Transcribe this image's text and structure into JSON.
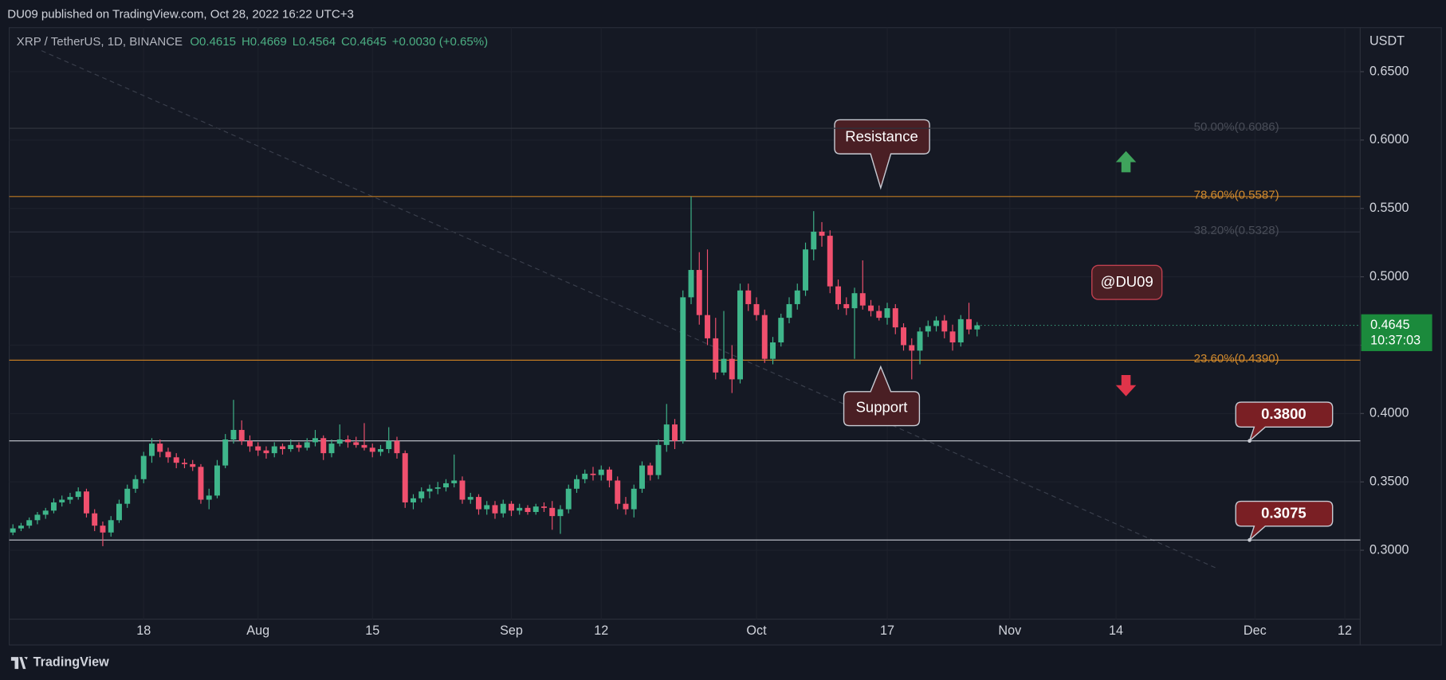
{
  "header": {
    "published": "DU09 published on TradingView.com, Oct 28, 2022 16:22 UTC+3",
    "symbol": "XRP / TetherUS, 1D, BINANCE",
    "ohlc_labels": [
      "O0.4615",
      "H0.4669",
      "L0.4564",
      "C0.4645"
    ],
    "change": "+0.0030 (+0.65%)"
  },
  "footer": {
    "brand": "TradingView"
  },
  "chart_data": {
    "type": "candlestick",
    "y_axis_label": "USDT",
    "countdown": "10:37:03",
    "up_color": "#3fb68b",
    "down_color": "#f0506e",
    "grid": true,
    "ylim": [
      0.2496,
      0.6822
    ],
    "yticks": [
      {
        "value": 0.3,
        "label": "0.3000"
      },
      {
        "value": 0.35,
        "label": "0.3500"
      },
      {
        "value": 0.4,
        "label": "0.4000"
      },
      {
        "value": 0.45,
        "label": "0.4500"
      },
      {
        "value": 0.5,
        "label": "0.5000"
      },
      {
        "value": 0.55,
        "label": "0.5500"
      },
      {
        "value": 0.6,
        "label": "0.6000"
      },
      {
        "value": 0.65,
        "label": "0.6500"
      }
    ],
    "xlim": [
      "07-02",
      "12-14"
    ],
    "xticks": [
      {
        "value": "07-18",
        "label": "18"
      },
      {
        "value": "08-01",
        "label": "Aug"
      },
      {
        "value": "08-15",
        "label": "15"
      },
      {
        "value": "09-01",
        "label": "Sep"
      },
      {
        "value": "09-12",
        "label": "12"
      },
      {
        "value": "10-01",
        "label": "Oct"
      },
      {
        "value": "10-17",
        "label": "17"
      },
      {
        "value": "11-01",
        "label": "Nov"
      },
      {
        "value": "11-14",
        "label": "14"
      },
      {
        "value": "12-01",
        "label": "Dec"
      },
      {
        "value": "12-12",
        "label": "12"
      }
    ],
    "x": [
      "07-02",
      "07-03",
      "07-04",
      "07-05",
      "07-06",
      "07-07",
      "07-08",
      "07-09",
      "07-10",
      "07-11",
      "07-12",
      "07-13",
      "07-14",
      "07-15",
      "07-16",
      "07-17",
      "07-18",
      "07-19",
      "07-20",
      "07-21",
      "07-22",
      "07-23",
      "07-24",
      "07-25",
      "07-26",
      "07-27",
      "07-28",
      "07-29",
      "07-30",
      "07-31",
      "08-01",
      "08-02",
      "08-03",
      "08-04",
      "08-05",
      "08-06",
      "08-07",
      "08-08",
      "08-09",
      "08-10",
      "08-11",
      "08-12",
      "08-13",
      "08-14",
      "08-15",
      "08-16",
      "08-17",
      "08-18",
      "08-19",
      "08-20",
      "08-21",
      "08-22",
      "08-23",
      "08-24",
      "08-25",
      "08-26",
      "08-27",
      "08-28",
      "08-29",
      "08-30",
      "08-31",
      "09-01",
      "09-02",
      "09-03",
      "09-04",
      "09-05",
      "09-06",
      "09-07",
      "09-08",
      "09-09",
      "09-10",
      "09-11",
      "09-12",
      "09-13",
      "09-14",
      "09-15",
      "09-16",
      "09-17",
      "09-18",
      "09-19",
      "09-20",
      "09-21",
      "09-22",
      "09-23",
      "09-24",
      "09-25",
      "09-26",
      "09-27",
      "09-28",
      "09-29",
      "09-30",
      "10-01",
      "10-02",
      "10-03",
      "10-04",
      "10-05",
      "10-06",
      "10-07",
      "10-08",
      "10-09",
      "10-10",
      "10-11",
      "10-12",
      "10-13",
      "10-14",
      "10-15",
      "10-16",
      "10-17",
      "10-18",
      "10-19",
      "10-20",
      "10-21",
      "10-22",
      "10-23",
      "10-24",
      "10-25",
      "10-26",
      "10-27",
      "10-28"
    ],
    "ohlc": [
      [
        0.313,
        0.319,
        0.311,
        0.316
      ],
      [
        0.316,
        0.32,
        0.314,
        0.318
      ],
      [
        0.318,
        0.324,
        0.316,
        0.322
      ],
      [
        0.322,
        0.328,
        0.319,
        0.326
      ],
      [
        0.326,
        0.331,
        0.323,
        0.329
      ],
      [
        0.329,
        0.338,
        0.327,
        0.335
      ],
      [
        0.335,
        0.34,
        0.332,
        0.337
      ],
      [
        0.337,
        0.342,
        0.334,
        0.339
      ],
      [
        0.339,
        0.346,
        0.337,
        0.343
      ],
      [
        0.343,
        0.345,
        0.324,
        0.327
      ],
      [
        0.327,
        0.33,
        0.314,
        0.318
      ],
      [
        0.318,
        0.321,
        0.303,
        0.313
      ],
      [
        0.313,
        0.325,
        0.31,
        0.322
      ],
      [
        0.322,
        0.337,
        0.32,
        0.334
      ],
      [
        0.334,
        0.348,
        0.331,
        0.345
      ],
      [
        0.345,
        0.355,
        0.342,
        0.352
      ],
      [
        0.352,
        0.372,
        0.349,
        0.369
      ],
      [
        0.369,
        0.382,
        0.364,
        0.378
      ],
      [
        0.378,
        0.381,
        0.368,
        0.372
      ],
      [
        0.372,
        0.375,
        0.364,
        0.368
      ],
      [
        0.368,
        0.371,
        0.36,
        0.364
      ],
      [
        0.364,
        0.367,
        0.36,
        0.363
      ],
      [
        0.363,
        0.366,
        0.358,
        0.361
      ],
      [
        0.361,
        0.363,
        0.334,
        0.337
      ],
      [
        0.337,
        0.345,
        0.33,
        0.34
      ],
      [
        0.34,
        0.366,
        0.338,
        0.362
      ],
      [
        0.362,
        0.385,
        0.36,
        0.381
      ],
      [
        0.381,
        0.41,
        0.378,
        0.388
      ],
      [
        0.388,
        0.395,
        0.377,
        0.38
      ],
      [
        0.38,
        0.384,
        0.372,
        0.376
      ],
      [
        0.376,
        0.379,
        0.369,
        0.373
      ],
      [
        0.373,
        0.376,
        0.367,
        0.371
      ],
      [
        0.371,
        0.379,
        0.368,
        0.376
      ],
      [
        0.376,
        0.378,
        0.37,
        0.374
      ],
      [
        0.374,
        0.381,
        0.372,
        0.377
      ],
      [
        0.377,
        0.379,
        0.372,
        0.375
      ],
      [
        0.375,
        0.382,
        0.373,
        0.379
      ],
      [
        0.379,
        0.388,
        0.376,
        0.382
      ],
      [
        0.382,
        0.384,
        0.366,
        0.371
      ],
      [
        0.371,
        0.381,
        0.368,
        0.378
      ],
      [
        0.378,
        0.392,
        0.376,
        0.381
      ],
      [
        0.381,
        0.384,
        0.375,
        0.379
      ],
      [
        0.379,
        0.383,
        0.375,
        0.377
      ],
      [
        0.377,
        0.393,
        0.373,
        0.375
      ],
      [
        0.375,
        0.378,
        0.368,
        0.372
      ],
      [
        0.372,
        0.377,
        0.369,
        0.374
      ],
      [
        0.374,
        0.39,
        0.371,
        0.38
      ],
      [
        0.38,
        0.383,
        0.367,
        0.371
      ],
      [
        0.371,
        0.373,
        0.331,
        0.335
      ],
      [
        0.335,
        0.341,
        0.33,
        0.338
      ],
      [
        0.338,
        0.346,
        0.335,
        0.343
      ],
      [
        0.343,
        0.348,
        0.338,
        0.345
      ],
      [
        0.345,
        0.35,
        0.341,
        0.346
      ],
      [
        0.346,
        0.352,
        0.343,
        0.349
      ],
      [
        0.349,
        0.37,
        0.346,
        0.351
      ],
      [
        0.351,
        0.354,
        0.334,
        0.337
      ],
      [
        0.337,
        0.342,
        0.334,
        0.339
      ],
      [
        0.339,
        0.341,
        0.326,
        0.33
      ],
      [
        0.33,
        0.336,
        0.326,
        0.333
      ],
      [
        0.333,
        0.336,
        0.323,
        0.327
      ],
      [
        0.327,
        0.337,
        0.324,
        0.334
      ],
      [
        0.334,
        0.336,
        0.325,
        0.329
      ],
      [
        0.329,
        0.334,
        0.326,
        0.331
      ],
      [
        0.331,
        0.333,
        0.326,
        0.328
      ],
      [
        0.328,
        0.334,
        0.326,
        0.332
      ],
      [
        0.332,
        0.335,
        0.328,
        0.331
      ],
      [
        0.331,
        0.336,
        0.315,
        0.325
      ],
      [
        0.325,
        0.333,
        0.312,
        0.33
      ],
      [
        0.33,
        0.348,
        0.327,
        0.345
      ],
      [
        0.345,
        0.355,
        0.342,
        0.352
      ],
      [
        0.352,
        0.359,
        0.349,
        0.356
      ],
      [
        0.356,
        0.361,
        0.351,
        0.355
      ],
      [
        0.355,
        0.362,
        0.351,
        0.359
      ],
      [
        0.359,
        0.361,
        0.346,
        0.351
      ],
      [
        0.351,
        0.354,
        0.33,
        0.334
      ],
      [
        0.334,
        0.339,
        0.326,
        0.33
      ],
      [
        0.33,
        0.348,
        0.324,
        0.345
      ],
      [
        0.345,
        0.365,
        0.342,
        0.362
      ],
      [
        0.362,
        0.364,
        0.351,
        0.355
      ],
      [
        0.355,
        0.381,
        0.352,
        0.377
      ],
      [
        0.377,
        0.407,
        0.372,
        0.392
      ],
      [
        0.392,
        0.396,
        0.374,
        0.38
      ],
      [
        0.38,
        0.49,
        0.378,
        0.485
      ],
      [
        0.485,
        0.5587,
        0.48,
        0.505
      ],
      [
        0.505,
        0.518,
        0.465,
        0.472
      ],
      [
        0.472,
        0.52,
        0.45,
        0.455
      ],
      [
        0.455,
        0.47,
        0.425,
        0.43
      ],
      [
        0.43,
        0.475,
        0.428,
        0.44
      ],
      [
        0.44,
        0.45,
        0.415,
        0.425
      ],
      [
        0.425,
        0.495,
        0.422,
        0.49
      ],
      [
        0.49,
        0.495,
        0.475,
        0.48
      ],
      [
        0.48,
        0.485,
        0.468,
        0.472
      ],
      [
        0.472,
        0.476,
        0.437,
        0.44
      ],
      [
        0.44,
        0.456,
        0.436,
        0.452
      ],
      [
        0.452,
        0.473,
        0.449,
        0.47
      ],
      [
        0.47,
        0.485,
        0.466,
        0.48
      ],
      [
        0.48,
        0.495,
        0.476,
        0.49
      ],
      [
        0.49,
        0.525,
        0.486,
        0.52
      ],
      [
        0.52,
        0.548,
        0.512,
        0.533
      ],
      [
        0.533,
        0.54,
        0.522,
        0.53
      ],
      [
        0.53,
        0.534,
        0.488,
        0.493
      ],
      [
        0.493,
        0.498,
        0.476,
        0.48
      ],
      [
        0.48,
        0.485,
        0.472,
        0.477
      ],
      [
        0.477,
        0.492,
        0.44,
        0.488
      ],
      [
        0.488,
        0.512,
        0.476,
        0.479
      ],
      [
        0.479,
        0.483,
        0.471,
        0.475
      ],
      [
        0.475,
        0.479,
        0.468,
        0.47
      ],
      [
        0.47,
        0.481,
        0.465,
        0.477
      ],
      [
        0.477,
        0.48,
        0.458,
        0.463
      ],
      [
        0.463,
        0.466,
        0.446,
        0.45
      ],
      [
        0.45,
        0.455,
        0.425,
        0.446
      ],
      [
        0.446,
        0.463,
        0.436,
        0.46
      ],
      [
        0.46,
        0.468,
        0.456,
        0.464
      ],
      [
        0.464,
        0.471,
        0.46,
        0.468
      ],
      [
        0.468,
        0.472,
        0.455,
        0.46
      ],
      [
        0.46,
        0.465,
        0.446,
        0.452
      ],
      [
        0.452,
        0.472,
        0.449,
        0.469
      ],
      [
        0.469,
        0.481,
        0.458,
        0.4615
      ],
      [
        0.4615,
        0.4669,
        0.4564,
        0.4645
      ]
    ],
    "levels": [
      {
        "value": 0.6086,
        "label": "50.00%(0.6086)",
        "style": "fib",
        "color": "#2e323d",
        "text_color": "#484c57"
      },
      {
        "value": 0.5587,
        "label": "78.60%(0.5587)",
        "style": "fib",
        "color": "#c07a22",
        "text_color": "#d08a2e"
      },
      {
        "value": 0.5328,
        "label": "38.20%(0.5328)",
        "style": "fib",
        "color": "#2e323d",
        "text_color": "#484c57"
      },
      {
        "value": 0.439,
        "label": "23.60%(0.4390)",
        "style": "fib",
        "color": "#c07a22",
        "text_color": "#d08a2e"
      },
      {
        "value": 0.38,
        "label": "0.3800",
        "style": "callout",
        "color": "#c9ccd4",
        "text_color": "#ffffff"
      },
      {
        "value": 0.3075,
        "label": "0.3075",
        "style": "callout",
        "color": "#c9ccd4",
        "text_color": "#ffffff"
      }
    ],
    "annotations": {
      "resistance": "Resistance",
      "support": "Support",
      "author": "@DU09"
    }
  }
}
